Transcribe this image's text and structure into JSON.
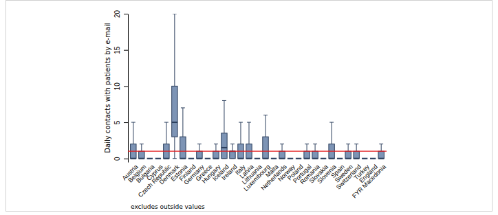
{
  "chart_data": {
    "type": "box",
    "y_label": "Daily contacts with patients by e-mail",
    "annotation": "excludes outside values",
    "categories": [
      "Austria",
      "Belgium",
      "Bulgaria",
      "Cyprus",
      "Czech Republic",
      "Denmark",
      "Estonia",
      "Finland",
      "Germany",
      "Greece",
      "Hungary",
      "Iceland",
      "Ireland",
      "Italy",
      "Latvia",
      "Lithuania",
      "Luxembourg",
      "Malta",
      "Netherlands",
      "Norway",
      "Poland",
      "Portugal",
      "Romania",
      "Slovakia",
      "Slovenia",
      "Spain",
      "Sweden",
      "Switzerland",
      "Turkey",
      "England",
      "FYR Macedonia"
    ],
    "whisker_low": [
      0,
      0,
      0,
      0,
      0,
      0,
      0,
      0,
      0,
      0,
      0,
      0,
      0,
      0,
      0,
      0,
      0,
      0,
      0,
      0,
      0,
      0,
      0,
      0,
      0,
      0,
      0,
      0,
      0,
      0,
      0
    ],
    "q1": [
      0,
      0,
      0,
      0,
      0,
      3,
      0,
      0,
      0,
      0,
      0,
      0,
      0,
      0,
      0,
      0,
      0,
      0,
      0,
      0,
      0,
      0,
      0,
      0,
      0,
      0,
      0,
      0,
      0,
      0,
      0
    ],
    "median": [
      0,
      0,
      0,
      0,
      0,
      5,
      0,
      0,
      0,
      0,
      0,
      1.5,
      1,
      0,
      0,
      0,
      0,
      0,
      0,
      0,
      0,
      0,
      0,
      0,
      0,
      0,
      0,
      0,
      0,
      0,
      0
    ],
    "q3": [
      2,
      1,
      0,
      0,
      2,
      10,
      3,
      0,
      1,
      0,
      1,
      3.5,
      1,
      2,
      2,
      0,
      3,
      0,
      1,
      0,
      0,
      1,
      1,
      0,
      2,
      0,
      1,
      1,
      0,
      0,
      1
    ],
    "whisker_high": [
      5,
      2,
      0,
      0,
      5,
      20,
      7,
      0,
      2,
      0,
      2,
      8,
      2,
      5,
      5,
      0,
      6,
      0,
      2,
      0,
      0,
      2,
      2,
      0,
      5,
      0,
      2,
      2,
      0,
      0,
      2
    ],
    "color": "#7d94b5",
    "hline": {
      "value": 1,
      "color": "#e31a1c"
    },
    "ylim": [
      -0.5,
      20
    ],
    "yticks": [
      0,
      5,
      10,
      15,
      20
    ]
  }
}
